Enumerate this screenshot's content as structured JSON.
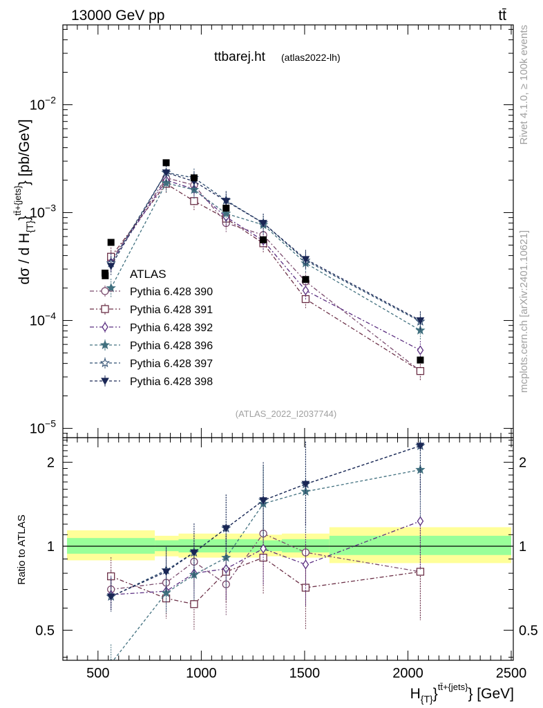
{
  "header": {
    "energy_label": "13000 GeV pp",
    "process_label": "tt̄",
    "plot_title": "ttbarej.ht",
    "plot_subtitle": "(atlas2022-lh)",
    "analysis_id": "(ATLAS_2022_I2037744)",
    "side_label_top": "Rivet 4.1.0, ≥ 100k events",
    "side_label_bottom": "mcplots.cern.ch [arXiv:2401.10621]"
  },
  "colors": {
    "data": "#000000",
    "band_inner": "#99ff99",
    "band_outer": "#ffff99"
  },
  "chart_data": [
    {
      "type": "scatter",
      "name": "main",
      "xlabel": "H_{T}^{tt̄+{jets}} [GeV]",
      "ylabel": "dσ / d H_{T}^{tt̄+{jets}} [pb/GeV]",
      "yscale": "log",
      "xlim": [
        330,
        2510
      ],
      "ylim": [
        8.2e-06,
        0.055
      ],
      "x": [
        535,
        830,
        965,
        1120,
        1300,
        1505,
        2060
      ],
      "data_series": {
        "name": "ATLAS",
        "x": [
          535,
          563,
          830,
          965,
          1120,
          1300,
          1505,
          2060
        ],
        "values": [
          0.00026,
          0.00053,
          0.0029,
          0.0021,
          0.0011,
          0.00056,
          0.00024,
          4.3e-05
        ]
      },
      "mc_x": [
        563,
        830,
        965,
        1120,
        1300,
        1505,
        2060
      ],
      "series": [
        {
          "name": "Pythia 6.428 390",
          "color": "#7a4a6d",
          "marker": "circle-open",
          "dash": "6,3,2,3",
          "values": [
            0.00036,
            0.0021,
            0.0018,
            0.0008,
            0.00062,
            0.00023,
            3.4e-05
          ]
        },
        {
          "name": "Pythia 6.428 391",
          "color": "#6b2f46",
          "marker": "square-open",
          "dash": "6,3,2,3",
          "values": [
            0.00039,
            0.00185,
            0.00128,
            0.00088,
            0.00052,
            0.000158,
            3.4e-05
          ]
        },
        {
          "name": "Pythia 6.428 392",
          "color": "#5a2d80",
          "marker": "diamond-open",
          "dash": "6,3,2,3",
          "values": [
            0.000345,
            0.002,
            0.00165,
            0.00091,
            0.00055,
            0.00019,
            5.3e-05
          ]
        },
        {
          "name": "Pythia 6.428 396",
          "color": "#41707f",
          "marker": "star",
          "dash": "4,3",
          "values": [
            0.0002,
            0.00188,
            0.00163,
            0.00098,
            0.00077,
            0.00034,
            8.1e-05
          ]
        },
        {
          "name": "Pythia 6.428 397",
          "color": "#2e4d70",
          "marker": "star-open",
          "dash": "4,3",
          "values": [
            0.00034,
            0.00235,
            0.0021,
            0.0013,
            0.0008,
            0.00036,
            9.8e-05
          ]
        },
        {
          "name": "Pythia 6.428 398",
          "color": "#1a2755",
          "marker": "triangle-down",
          "dash": "4,3",
          "values": [
            0.00032,
            0.00235,
            0.00195,
            0.00128,
            0.0008,
            0.00037,
            0.0001
          ]
        }
      ]
    },
    {
      "type": "scatter",
      "name": "ratio",
      "ylabel": "Ratio to ATLAS",
      "yscale": "log",
      "xlim": [
        330,
        2510
      ],
      "ylim": [
        0.39,
        2.45
      ],
      "x": [
        563,
        830,
        965,
        1120,
        1300,
        1505,
        2060
      ],
      "bands": [
        {
          "x0": 350,
          "x1": 775,
          "inner": [
            0.94,
            1.07
          ],
          "outer": [
            0.89,
            1.14
          ]
        },
        {
          "x0": 775,
          "x1": 890,
          "inner": [
            0.96,
            1.05
          ],
          "outer": [
            0.92,
            1.09
          ]
        },
        {
          "x0": 890,
          "x1": 1280,
          "inner": [
            0.95,
            1.06
          ],
          "outer": [
            0.91,
            1.11
          ]
        },
        {
          "x0": 1280,
          "x1": 1390,
          "inner": [
            0.96,
            1.05
          ],
          "outer": [
            0.92,
            1.1
          ]
        },
        {
          "x0": 1390,
          "x1": 1620,
          "inner": [
            0.95,
            1.06
          ],
          "outer": [
            0.91,
            1.11
          ]
        },
        {
          "x0": 1620,
          "x1": 2500,
          "inner": [
            0.93,
            1.09
          ],
          "outer": [
            0.87,
            1.17
          ]
        }
      ],
      "series": [
        {
          "name": "Pythia 6.428 390",
          "values": [
            0.7,
            0.74,
            0.88,
            0.73,
            1.11,
            0.95,
            0.81
          ]
        },
        {
          "name": "Pythia 6.428 391",
          "values": [
            0.78,
            0.65,
            0.62,
            0.81,
            0.91,
            0.71,
            0.81
          ]
        },
        {
          "name": "Pythia 6.428 392",
          "values": [
            0.67,
            0.69,
            0.8,
            0.83,
            0.98,
            0.86,
            1.23
          ]
        },
        {
          "name": "Pythia 6.428 396",
          "values": [
            0.38,
            0.68,
            0.79,
            0.91,
            1.42,
            1.57,
            1.88
          ]
        },
        {
          "name": "Pythia 6.428 397",
          "values": [
            0.66,
            0.82,
            0.95,
            1.16,
            1.46,
            1.67,
            2.29
          ]
        },
        {
          "name": "Pythia 6.428 398",
          "values": [
            0.66,
            0.81,
            0.95,
            1.16,
            1.46,
            1.67,
            2.29
          ]
        }
      ]
    }
  ],
  "axes": {
    "main_y_ticks": [
      {
        "base": "10",
        "exp": "−2",
        "value": 0.01
      },
      {
        "base": "10",
        "exp": "−3",
        "value": 0.001
      },
      {
        "base": "10",
        "exp": "−4",
        "value": 0.0001
      },
      {
        "base": "10",
        "exp": "−5",
        "value": 1e-05
      }
    ],
    "ratio_y_ticks": [
      {
        "label": "2",
        "value": 2
      },
      {
        "label": "1",
        "value": 1
      },
      {
        "label": "0.5",
        "value": 0.5
      }
    ],
    "x_ticks": [
      {
        "label": "500",
        "value": 500
      },
      {
        "label": "1000",
        "value": 1000
      },
      {
        "label": "1500",
        "value": 1500
      },
      {
        "label": "2000",
        "value": 2000
      },
      {
        "label": "2500",
        "value": 2500
      }
    ],
    "x_label_main": "H",
    "x_label_sub": "{T}",
    "x_label_sup": "tt̄+{jets}",
    "x_label_unit": "} [GeV]",
    "y_label_main": "dσ / d H",
    "y_label_sub": "{T}",
    "y_label_sup": "tt̄+{jets}",
    "y_label_unit": "} [pb/GeV]",
    "ratio_y_label": "Ratio to ATLAS"
  },
  "legend": {
    "data_label": "ATLAS"
  }
}
